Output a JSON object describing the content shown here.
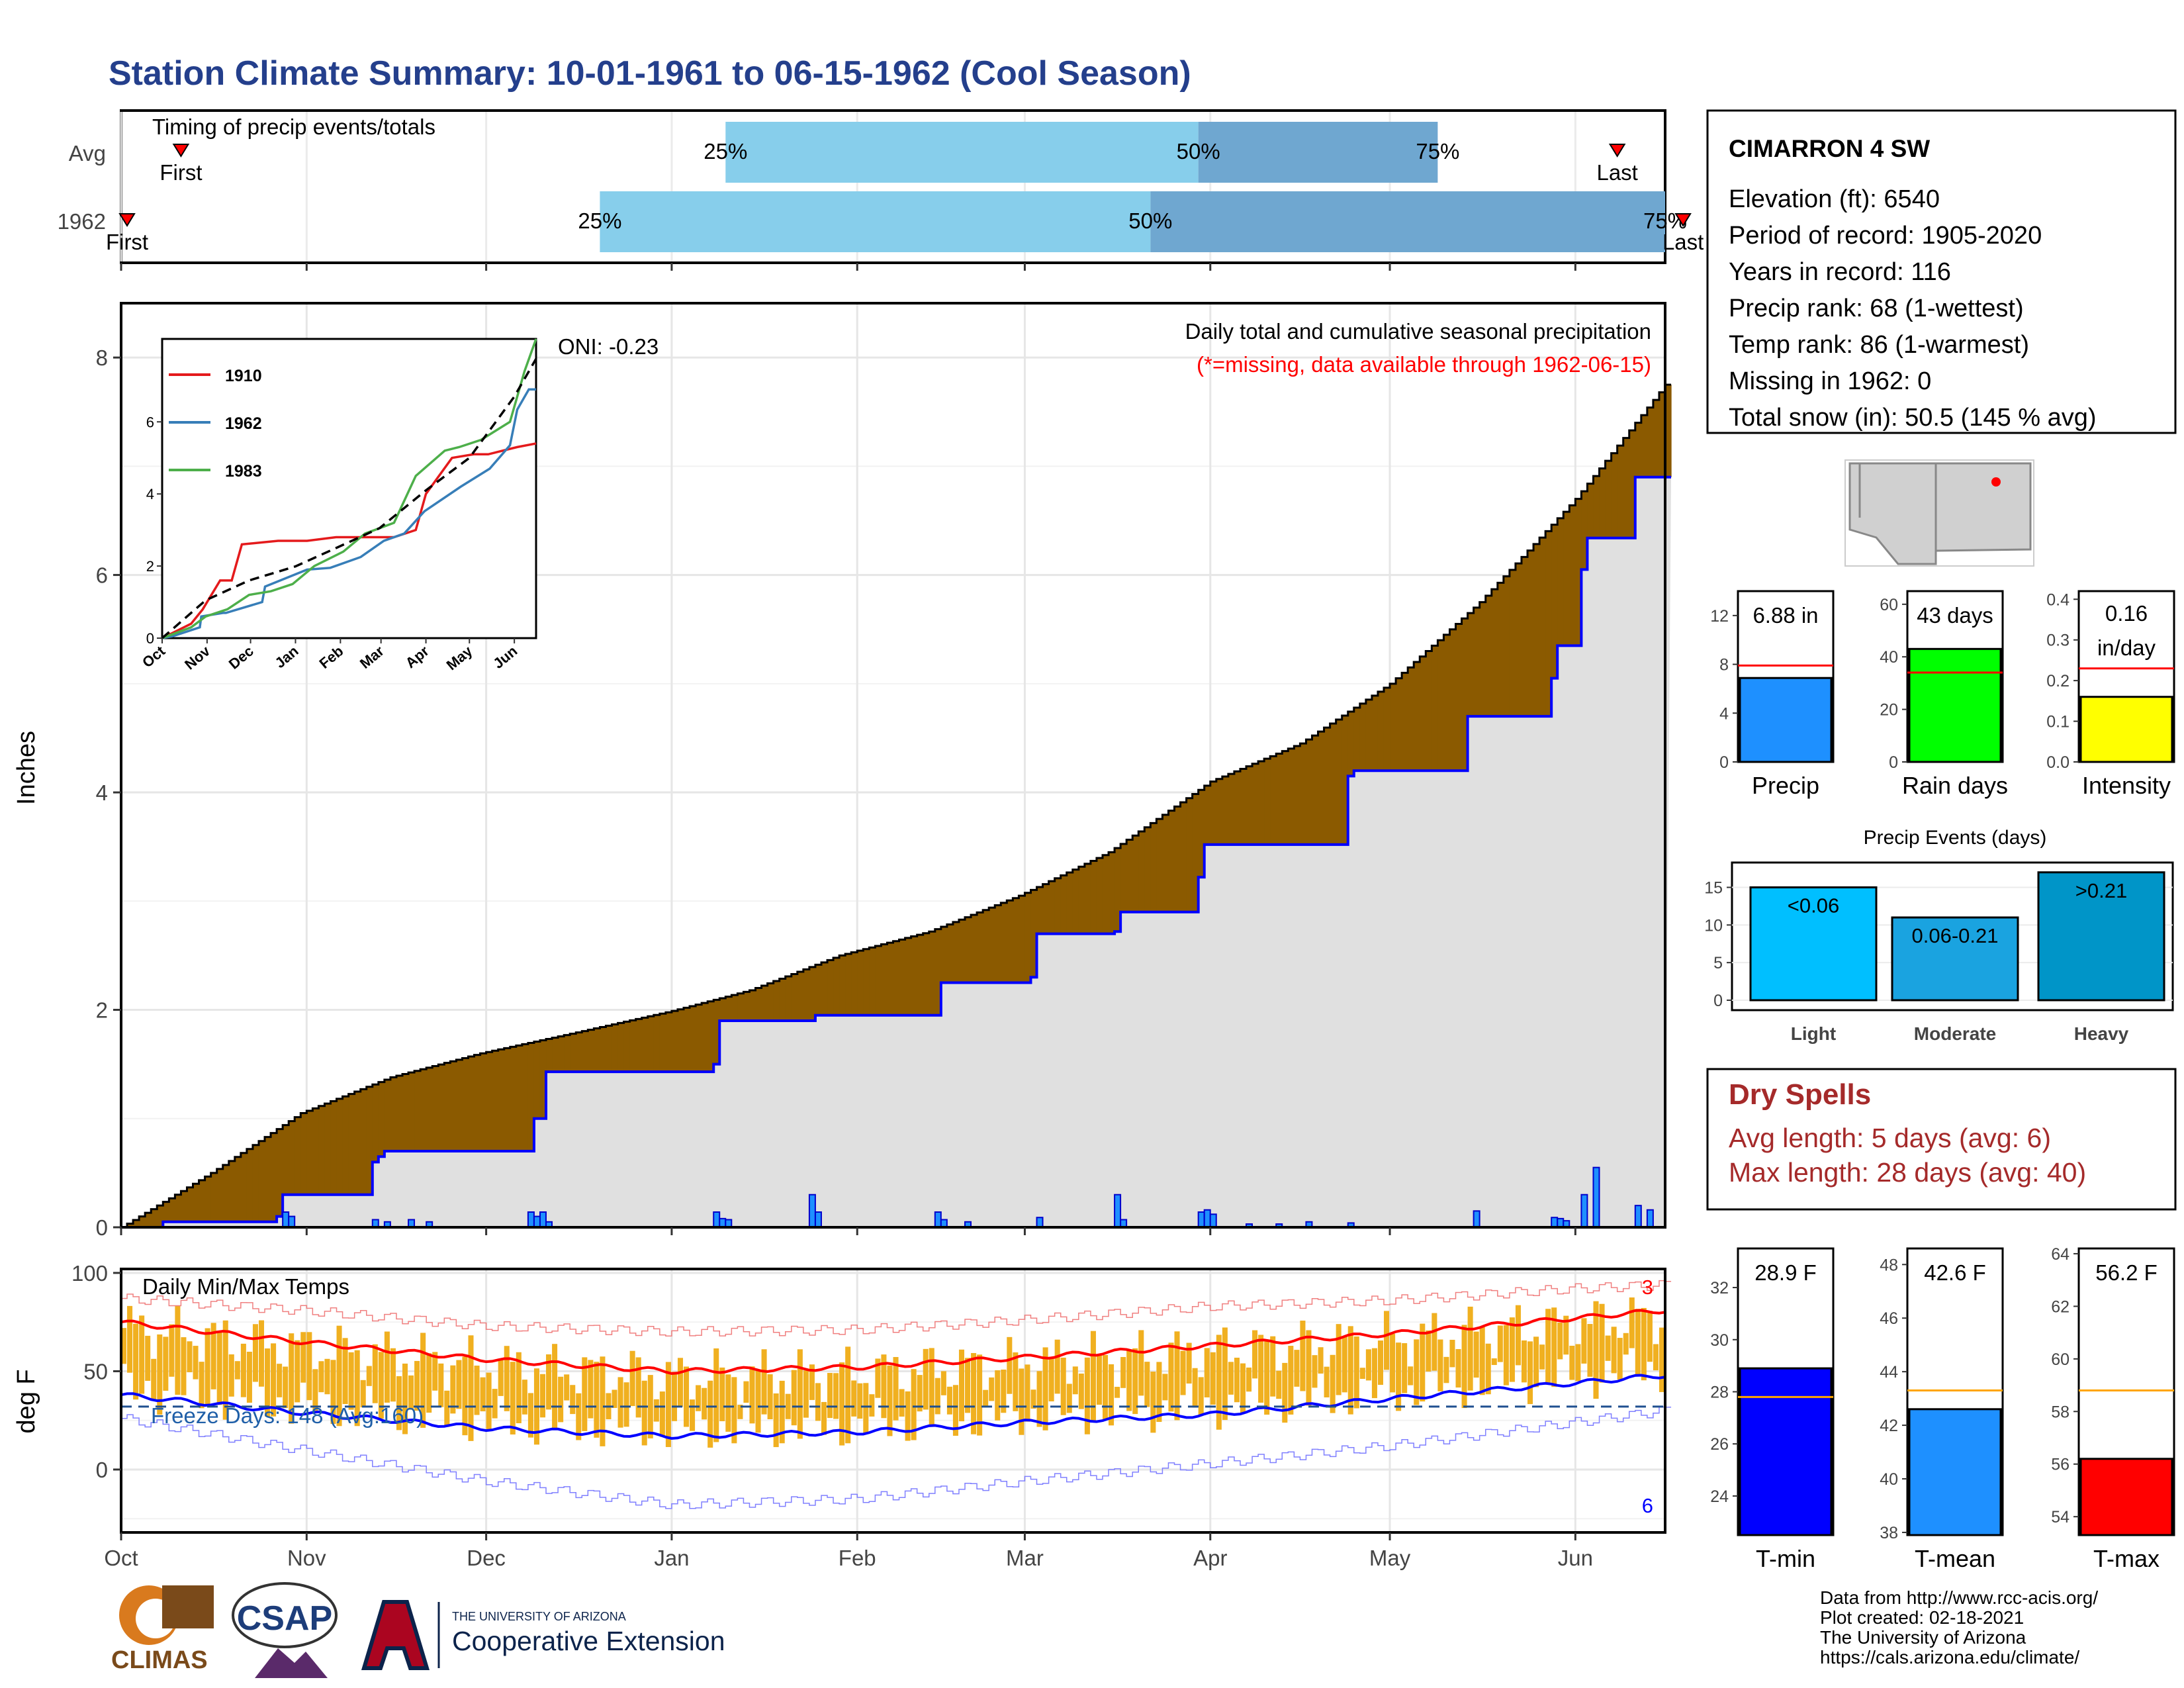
{
  "title": "Station Climate Summary: 10-01-1961 to 06-15-1962 (Cool Season)",
  "timing": {
    "panel_title": "Timing of precip events/totals",
    "row_labels": [
      "Avg",
      "1962"
    ],
    "first_label": "First",
    "last_label": "Last",
    "pct_labels": [
      "25%",
      "50%",
      "75%"
    ]
  },
  "precip_main": {
    "ylabel": "Inches",
    "yticks": [
      "0",
      "2",
      "4",
      "6",
      "8"
    ],
    "annotation_title": "Daily total and cumulative seasonal precipitation",
    "annotation_missing": "(*=missing, data available through 1962-06-15)",
    "oni": "ONI: -0.23"
  },
  "inset": {
    "legend": [
      "1910",
      "1962",
      "1983"
    ],
    "yticks": [
      "0",
      "2",
      "4",
      "6"
    ],
    "xticks": [
      "Oct",
      "Nov",
      "Dec",
      "Jan",
      "Feb",
      "Mar",
      "Apr",
      "May",
      "Jun"
    ]
  },
  "temp_panel": {
    "ylabel": "deg F",
    "title": "Daily Min/Max Temps",
    "freeze": "Freeze Days: 148 (Avg:160)",
    "yticks": [
      "0",
      "50",
      "100"
    ],
    "count_red": "3",
    "count_blue": "6"
  },
  "months": [
    "Oct",
    "Nov",
    "Dec",
    "Jan",
    "Feb",
    "Mar",
    "Apr",
    "May",
    "Jun"
  ],
  "station": {
    "name": "CIMARRON 4 SW",
    "lines": [
      "Elevation (ft): 6540",
      "Period of record: 1905-2020",
      "Years in record: 116",
      "Precip rank: 68 (1-wettest)",
      "Temp rank: 86 (1-warmest)",
      "Missing in 1962: 0",
      "Total snow (in): 50.5 (145 % avg)"
    ]
  },
  "mini_bars": {
    "precip": {
      "label": "Precip",
      "value_text": "6.88 in",
      "value": 6.88,
      "avg": 7.9,
      "ymax": 14,
      "yticks": [
        "0",
        "4",
        "8",
        "12"
      ],
      "color": "#1e90ff"
    },
    "raindays": {
      "label": "Rain days",
      "value_text": "43 days",
      "value": 43,
      "avg": 34,
      "ymax": 65,
      "yticks": [
        "0",
        "20",
        "40",
        "60"
      ],
      "color": "#00ff00"
    },
    "intensity": {
      "label": "Intensity",
      "value_text": "0.16",
      "value_text2": "in/day",
      "value": 0.16,
      "avg": 0.23,
      "ymax": 0.42,
      "yticks": [
        "0.0",
        "0.1",
        "0.2",
        "0.3",
        "0.4"
      ],
      "color": "#ffff00"
    }
  },
  "events": {
    "title": "Precip Events (days)",
    "yticks": [
      "0",
      "5",
      "10",
      "15"
    ],
    "bars": [
      {
        "label": "Light",
        "range": "<0.06",
        "value": 15,
        "color": "#00bfff"
      },
      {
        "label": "Moderate",
        "range": "0.06-0.21",
        "value": 11,
        "color": "#1aa3e0"
      },
      {
        "label": "Heavy",
        "range": ">0.21",
        "value": 17,
        "color": "#0095c8"
      }
    ]
  },
  "dry_spells": {
    "title": "Dry Spells",
    "avg": "Avg length: 5 days (avg: 6)",
    "max": "Max length: 28 days (avg: 40)"
  },
  "temp_bars": {
    "tmin": {
      "label": "T-min",
      "value_text": "28.9 F",
      "value": 28.9,
      "avg": 27.8,
      "ymin": 22.5,
      "ymax": 33.5,
      "yticks": [
        "24",
        "26",
        "28",
        "30",
        "32"
      ],
      "color": "#0000ff"
    },
    "tmean": {
      "label": "T-mean",
      "value_text": "42.6 F",
      "value": 42.6,
      "avg": 43.3,
      "ymin": 37.9,
      "ymax": 48.6,
      "yticks": [
        "38",
        "40",
        "42",
        "44",
        "46",
        "48"
      ],
      "color": "#1e90ff"
    },
    "tmax": {
      "label": "T-max",
      "value_text": "56.2 F",
      "value": 56.2,
      "avg": 58.8,
      "ymin": 53.3,
      "ymax": 64.2,
      "yticks": [
        "54",
        "56",
        "58",
        "60",
        "62",
        "64"
      ],
      "color": "#ff0000"
    }
  },
  "credits": {
    "lines": [
      "Data from http://www.rcc-acis.org/",
      "Plot created: 02-18-2021",
      "The University of Arizona",
      "https://cals.arizona.edu/climate/"
    ]
  },
  "logos": {
    "climas": "CLIMAS",
    "csap": "CSAP",
    "ua_top": "THE UNIVERSITY OF ARIZONA",
    "ua_bottom": "Cooperative Extension"
  },
  "colors": {
    "title": "#243f8c",
    "above": "#8b5a00",
    "below": "#008000",
    "cum_area": "#e0e0e0",
    "bar_fill": "#1e90ff",
    "temp_bar": "#f0b020",
    "dry_spell": "#a52a2a"
  },
  "chart_data": [
    {
      "type": "bar",
      "name": "Timing of precip events/totals",
      "categories": [
        "Avg",
        "1962"
      ],
      "x_units": "days since Oct 1",
      "first": [
        10,
        1
      ],
      "p25": [
        101,
        80
      ],
      "p50": [
        180,
        172
      ],
      "p75": [
        220,
        258
      ],
      "last": [
        250,
        261
      ]
    },
    {
      "type": "area",
      "name": "Daily total and cumulative seasonal precipitation",
      "ylabel": "Inches",
      "ylim": [
        0,
        8.5
      ],
      "x_units": "days since Oct 1",
      "series": [
        {
          "name": "average cumulative",
          "x": [
            0,
            15,
            30,
            45,
            60,
            75,
            92,
            105,
            120,
            135,
            150,
            165,
            182,
            197,
            212,
            227,
            243,
            258
          ],
          "y": [
            0,
            0.5,
            1.05,
            1.38,
            1.6,
            1.78,
            1.99,
            2.18,
            2.5,
            2.72,
            3.05,
            3.45,
            4.1,
            4.45,
            5.0,
            5.75,
            6.7,
            7.75
          ]
        },
        {
          "name": "1962 cumulative",
          "x": [
            0,
            7,
            26,
            27,
            42,
            43,
            44,
            49,
            68,
            69,
            71,
            99,
            100,
            115,
            116,
            136,
            137,
            152,
            153,
            166,
            167,
            180,
            181,
            205,
            206,
            225,
            226,
            239,
            240,
            244,
            245,
            253,
            255,
            258
          ],
          "y": [
            0,
            0.05,
            0.1,
            0.3,
            0.6,
            0.65,
            0.7,
            0.7,
            0.7,
            1.0,
            1.43,
            1.5,
            1.9,
            1.9,
            1.95,
            1.95,
            2.25,
            2.3,
            2.7,
            2.72,
            2.9,
            3.22,
            3.52,
            4.15,
            4.2,
            4.7,
            4.7,
            5.05,
            5.35,
            6.05,
            6.34,
            6.9,
            6.9,
            6.9
          ]
        },
        {
          "name": "daily precipitation",
          "x": [
            27,
            28,
            42,
            44,
            48,
            51,
            68,
            69,
            70,
            71,
            99,
            100,
            101,
            115,
            116,
            136,
            137,
            141,
            153,
            166,
            167,
            180,
            181,
            182,
            188,
            193,
            198,
            205,
            226,
            239,
            240,
            241,
            244,
            246,
            253,
            255
          ],
          "y": [
            0.14,
            0.1,
            0.07,
            0.05,
            0.07,
            0.05,
            0.14,
            0.1,
            0.14,
            0.05,
            0.14,
            0.08,
            0.07,
            0.3,
            0.14,
            0.14,
            0.07,
            0.05,
            0.09,
            0.3,
            0.07,
            0.14,
            0.16,
            0.12,
            0.03,
            0.03,
            0.05,
            0.04,
            0.15,
            0.09,
            0.08,
            0.06,
            0.3,
            0.55,
            0.2,
            0.16
          ]
        }
      ]
    },
    {
      "type": "line",
      "name": "inset cumulative comparison",
      "yticks": [
        0,
        2,
        4,
        6
      ],
      "x_units": "days since Oct 1",
      "series": [
        {
          "name": "1910",
          "x": [
            0,
            20,
            28,
            40,
            48,
            55,
            80,
            100,
            120,
            140,
            160,
            175,
            182,
            200,
            215,
            225,
            245,
            258
          ],
          "y": [
            0,
            0.4,
            0.8,
            1.6,
            1.6,
            2.6,
            2.7,
            2.7,
            2.8,
            2.8,
            2.8,
            3.0,
            4.0,
            5.0,
            5.1,
            5.1,
            5.3,
            5.4
          ]
        },
        {
          "name": "1962",
          "x": [
            0,
            7,
            26,
            27,
            42,
            44,
            69,
            71,
            100,
            116,
            137,
            153,
            167,
            181,
            206,
            226,
            240,
            245,
            253,
            258
          ],
          "y": [
            0,
            0.05,
            0.3,
            0.6,
            0.7,
            0.7,
            1.0,
            1.43,
            1.9,
            1.95,
            2.25,
            2.7,
            2.9,
            3.52,
            4.2,
            4.7,
            5.35,
            6.34,
            6.9,
            6.9
          ]
        },
        {
          "name": "1983",
          "x": [
            0,
            20,
            30,
            45,
            60,
            75,
            90,
            105,
            125,
            140,
            160,
            175,
            195,
            205,
            220,
            240,
            250,
            258
          ],
          "y": [
            0,
            0.3,
            0.6,
            0.8,
            1.2,
            1.3,
            1.5,
            2.0,
            2.4,
            2.9,
            3.2,
            4.5,
            5.2,
            5.3,
            5.5,
            6.0,
            7.4,
            8.3
          ]
        },
        {
          "name": "average",
          "x": [
            0,
            30,
            60,
            92,
            120,
            150,
            182,
            212,
            243,
            258
          ],
          "y": [
            0,
            1.05,
            1.6,
            1.99,
            2.5,
            3.05,
            4.1,
            5.0,
            6.7,
            7.75
          ]
        }
      ]
    },
    {
      "type": "line",
      "name": "Daily Min/Max Temps",
      "ylabel": "deg F",
      "ylim": [
        -32,
        102
      ],
      "x_units": "days since Oct 1",
      "series": [
        {
          "name": "avg max",
          "x": [
            0,
            30,
            61,
            92,
            123,
            151,
            182,
            212,
            243,
            258
          ],
          "y": [
            75,
            65,
            56,
            50,
            52,
            57,
            63,
            69,
            77,
            81
          ]
        },
        {
          "name": "avg min",
          "x": [
            0,
            30,
            61,
            92,
            123,
            151,
            182,
            212,
            243,
            258
          ],
          "y": [
            38,
            29,
            21,
            17,
            19,
            24,
            28,
            36,
            44,
            48
          ]
        },
        {
          "name": "record max",
          "x": [
            0,
            30,
            61,
            92,
            123,
            151,
            182,
            212,
            243,
            258
          ],
          "y": [
            87,
            81,
            73,
            70,
            71,
            76,
            83,
            86,
            92,
            94
          ]
        },
        {
          "name": "record min",
          "x": [
            0,
            30,
            61,
            92,
            123,
            151,
            182,
            212,
            243,
            258
          ],
          "y": [
            26,
            10,
            -6,
            -18,
            -15,
            -6,
            3,
            12,
            24,
            30
          ]
        }
      ],
      "freeze_line": 32
    },
    {
      "type": "bar",
      "name": "Precip Events (days)",
      "categories": [
        "Light",
        "Moderate",
        "Heavy"
      ],
      "values": [
        15,
        11,
        17
      ]
    }
  ]
}
